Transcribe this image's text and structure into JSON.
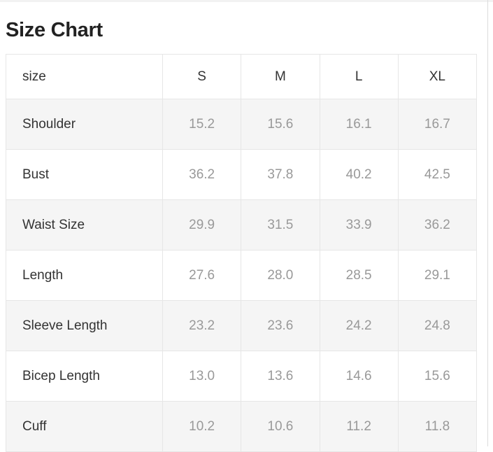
{
  "title": "Size Chart",
  "table": {
    "headers": [
      "size",
      "S",
      "M",
      "L",
      "XL"
    ],
    "rows": [
      [
        "Shoulder",
        "15.2",
        "15.6",
        "16.1",
        "16.7"
      ],
      [
        "Bust",
        "36.2",
        "37.8",
        "40.2",
        "42.5"
      ],
      [
        "Waist Size",
        "29.9",
        "31.5",
        "33.9",
        "36.2"
      ],
      [
        "Length",
        "27.6",
        "28.0",
        "28.5",
        "29.1"
      ],
      [
        "Sleeve Length",
        "23.2",
        "23.6",
        "24.2",
        "24.8"
      ],
      [
        "Bicep Length",
        "13.0",
        "13.6",
        "14.6",
        "15.6"
      ],
      [
        "Cuff",
        "10.2",
        "10.6",
        "11.2",
        "11.8"
      ]
    ]
  }
}
